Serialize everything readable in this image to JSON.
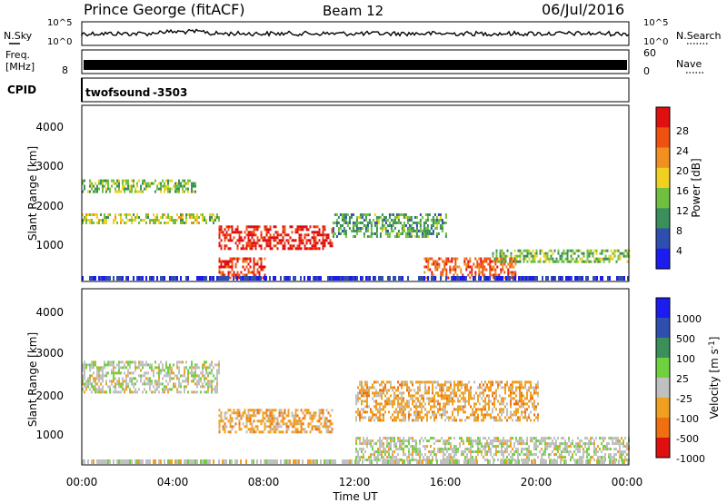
{
  "header": {
    "station": "Prince George (fitACF)",
    "beam": "Beam 12",
    "date": "06/Jul/2016"
  },
  "noise_panel": {
    "left_label": "N.Sky",
    "right_label": "N.Search",
    "left_ticks": [
      "10^5",
      "10^0"
    ],
    "right_ticks": [
      "10^5",
      "10^0"
    ]
  },
  "freq_panel": {
    "left_label_1": "Freq.",
    "left_label_2": "[MHz]",
    "left_tick": "8",
    "right_label": "Nave",
    "right_ticks": [
      "60",
      "0"
    ]
  },
  "cpid_panel": {
    "label": "CPID",
    "program": "twofsound",
    "id": "-3503"
  },
  "colors": {
    "power": [
      "#1c1cf0",
      "#2f4fb0",
      "#3a8f5a",
      "#6fc040",
      "#f0d020",
      "#f09020",
      "#f05010",
      "#e01010"
    ],
    "velocity": [
      "#1c1cf0",
      "#2f4fb0",
      "#3a8f5a",
      "#6fd040",
      "#c0c0c0",
      "#f0a020",
      "#f07010",
      "#e01010"
    ]
  },
  "chart_data": [
    {
      "type": "heatmap",
      "title": "Power",
      "ylabel": "Slant Range [km]",
      "y_ticks": [
        "1000",
        "2000",
        "3000",
        "4000"
      ],
      "ylim": [
        200,
        4600
      ],
      "colorbar_label": "Power [dB]",
      "colorbar_ticks": [
        "4",
        "8",
        "12",
        "16",
        "20",
        "24",
        "28"
      ],
      "layers": [
        {
          "range_km": [
            2450,
            2750
          ],
          "t_hours": [
            0,
            5
          ],
          "value_db": 14
        },
        {
          "range_km": [
            1650,
            1900
          ],
          "t_hours": [
            0,
            6
          ],
          "value_db": 16
        },
        {
          "range_km": [
            1000,
            1600
          ],
          "t_hours": [
            6,
            11
          ],
          "value_db": 28
        },
        {
          "range_km": [
            300,
            800
          ],
          "t_hours": [
            6,
            8
          ],
          "value_db": 26
        },
        {
          "range_km": [
            300,
            800
          ],
          "t_hours": [
            15,
            19
          ],
          "value_db": 24
        },
        {
          "range_km": [
            1300,
            1900
          ],
          "t_hours": [
            11,
            16
          ],
          "value_db": 12
        },
        {
          "range_km": [
            700,
            1000
          ],
          "t_hours": [
            18,
            24
          ],
          "value_db": 14
        }
      ]
    },
    {
      "type": "heatmap",
      "title": "Velocity",
      "ylabel": "Slant Range [km]",
      "y_ticks": [
        "1000",
        "2000",
        "3000",
        "4000"
      ],
      "ylim": [
        200,
        4600
      ],
      "colorbar_label": "Velocity [m s",
      "colorbar_label_sup": "-1",
      "colorbar_label_end": "]",
      "colorbar_ticks": [
        "1000",
        "500",
        "100",
        "25",
        "-25",
        "-100",
        "-500",
        "-1000"
      ],
      "xlabel": "Time UT",
      "x_ticks": [
        "00:00",
        "04:00",
        "08:00",
        "12:00",
        "16:00",
        "20:00",
        "00:00"
      ],
      "xlim_hours": [
        0,
        24
      ],
      "layers": [
        {
          "range_km": [
            1000,
            1600
          ],
          "t_hours": [
            6,
            11
          ],
          "value_ms": -300
        },
        {
          "range_km": [
            1300,
            2300
          ],
          "t_hours": [
            12,
            20
          ],
          "value_ms": -150
        },
        {
          "range_km": [
            2000,
            2800
          ],
          "t_hours": [
            0,
            6
          ],
          "value_ms": 0
        },
        {
          "range_km": [
            300,
            900
          ],
          "t_hours": [
            12,
            24
          ],
          "value_ms": 0
        }
      ]
    }
  ]
}
